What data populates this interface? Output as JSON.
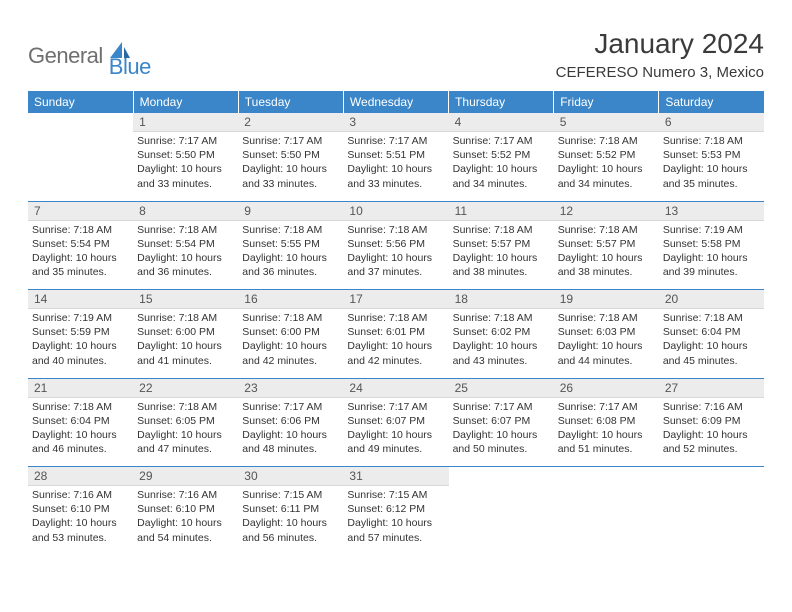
{
  "brand": {
    "part1": "General",
    "part2": "Blue",
    "logo_color": "#3a86c8"
  },
  "title": "January 2024",
  "location": "CEFERESO Numero 3, Mexico",
  "header_bg": "#3a86c8",
  "header_fg": "#ffffff",
  "daynum_bg": "#ececec",
  "rule_color": "#3a86c8",
  "weekdays": [
    "Sunday",
    "Monday",
    "Tuesday",
    "Wednesday",
    "Thursday",
    "Friday",
    "Saturday"
  ],
  "weeks": [
    [
      {
        "n": "",
        "sr": "",
        "ss": "",
        "dl": ""
      },
      {
        "n": "1",
        "sr": "7:17 AM",
        "ss": "5:50 PM",
        "dl": "10 hours and 33 minutes."
      },
      {
        "n": "2",
        "sr": "7:17 AM",
        "ss": "5:50 PM",
        "dl": "10 hours and 33 minutes."
      },
      {
        "n": "3",
        "sr": "7:17 AM",
        "ss": "5:51 PM",
        "dl": "10 hours and 33 minutes."
      },
      {
        "n": "4",
        "sr": "7:17 AM",
        "ss": "5:52 PM",
        "dl": "10 hours and 34 minutes."
      },
      {
        "n": "5",
        "sr": "7:18 AM",
        "ss": "5:52 PM",
        "dl": "10 hours and 34 minutes."
      },
      {
        "n": "6",
        "sr": "7:18 AM",
        "ss": "5:53 PM",
        "dl": "10 hours and 35 minutes."
      }
    ],
    [
      {
        "n": "7",
        "sr": "7:18 AM",
        "ss": "5:54 PM",
        "dl": "10 hours and 35 minutes."
      },
      {
        "n": "8",
        "sr": "7:18 AM",
        "ss": "5:54 PM",
        "dl": "10 hours and 36 minutes."
      },
      {
        "n": "9",
        "sr": "7:18 AM",
        "ss": "5:55 PM",
        "dl": "10 hours and 36 minutes."
      },
      {
        "n": "10",
        "sr": "7:18 AM",
        "ss": "5:56 PM",
        "dl": "10 hours and 37 minutes."
      },
      {
        "n": "11",
        "sr": "7:18 AM",
        "ss": "5:57 PM",
        "dl": "10 hours and 38 minutes."
      },
      {
        "n": "12",
        "sr": "7:18 AM",
        "ss": "5:57 PM",
        "dl": "10 hours and 38 minutes."
      },
      {
        "n": "13",
        "sr": "7:19 AM",
        "ss": "5:58 PM",
        "dl": "10 hours and 39 minutes."
      }
    ],
    [
      {
        "n": "14",
        "sr": "7:19 AM",
        "ss": "5:59 PM",
        "dl": "10 hours and 40 minutes."
      },
      {
        "n": "15",
        "sr": "7:18 AM",
        "ss": "6:00 PM",
        "dl": "10 hours and 41 minutes."
      },
      {
        "n": "16",
        "sr": "7:18 AM",
        "ss": "6:00 PM",
        "dl": "10 hours and 42 minutes."
      },
      {
        "n": "17",
        "sr": "7:18 AM",
        "ss": "6:01 PM",
        "dl": "10 hours and 42 minutes."
      },
      {
        "n": "18",
        "sr": "7:18 AM",
        "ss": "6:02 PM",
        "dl": "10 hours and 43 minutes."
      },
      {
        "n": "19",
        "sr": "7:18 AM",
        "ss": "6:03 PM",
        "dl": "10 hours and 44 minutes."
      },
      {
        "n": "20",
        "sr": "7:18 AM",
        "ss": "6:04 PM",
        "dl": "10 hours and 45 minutes."
      }
    ],
    [
      {
        "n": "21",
        "sr": "7:18 AM",
        "ss": "6:04 PM",
        "dl": "10 hours and 46 minutes."
      },
      {
        "n": "22",
        "sr": "7:18 AM",
        "ss": "6:05 PM",
        "dl": "10 hours and 47 minutes."
      },
      {
        "n": "23",
        "sr": "7:17 AM",
        "ss": "6:06 PM",
        "dl": "10 hours and 48 minutes."
      },
      {
        "n": "24",
        "sr": "7:17 AM",
        "ss": "6:07 PM",
        "dl": "10 hours and 49 minutes."
      },
      {
        "n": "25",
        "sr": "7:17 AM",
        "ss": "6:07 PM",
        "dl": "10 hours and 50 minutes."
      },
      {
        "n": "26",
        "sr": "7:17 AM",
        "ss": "6:08 PM",
        "dl": "10 hours and 51 minutes."
      },
      {
        "n": "27",
        "sr": "7:16 AM",
        "ss": "6:09 PM",
        "dl": "10 hours and 52 minutes."
      }
    ],
    [
      {
        "n": "28",
        "sr": "7:16 AM",
        "ss": "6:10 PM",
        "dl": "10 hours and 53 minutes."
      },
      {
        "n": "29",
        "sr": "7:16 AM",
        "ss": "6:10 PM",
        "dl": "10 hours and 54 minutes."
      },
      {
        "n": "30",
        "sr": "7:15 AM",
        "ss": "6:11 PM",
        "dl": "10 hours and 56 minutes."
      },
      {
        "n": "31",
        "sr": "7:15 AM",
        "ss": "6:12 PM",
        "dl": "10 hours and 57 minutes."
      },
      {
        "n": "",
        "sr": "",
        "ss": "",
        "dl": ""
      },
      {
        "n": "",
        "sr": "",
        "ss": "",
        "dl": ""
      },
      {
        "n": "",
        "sr": "",
        "ss": "",
        "dl": ""
      }
    ]
  ],
  "labels": {
    "sunrise": "Sunrise:",
    "sunset": "Sunset:",
    "daylight": "Daylight:"
  }
}
